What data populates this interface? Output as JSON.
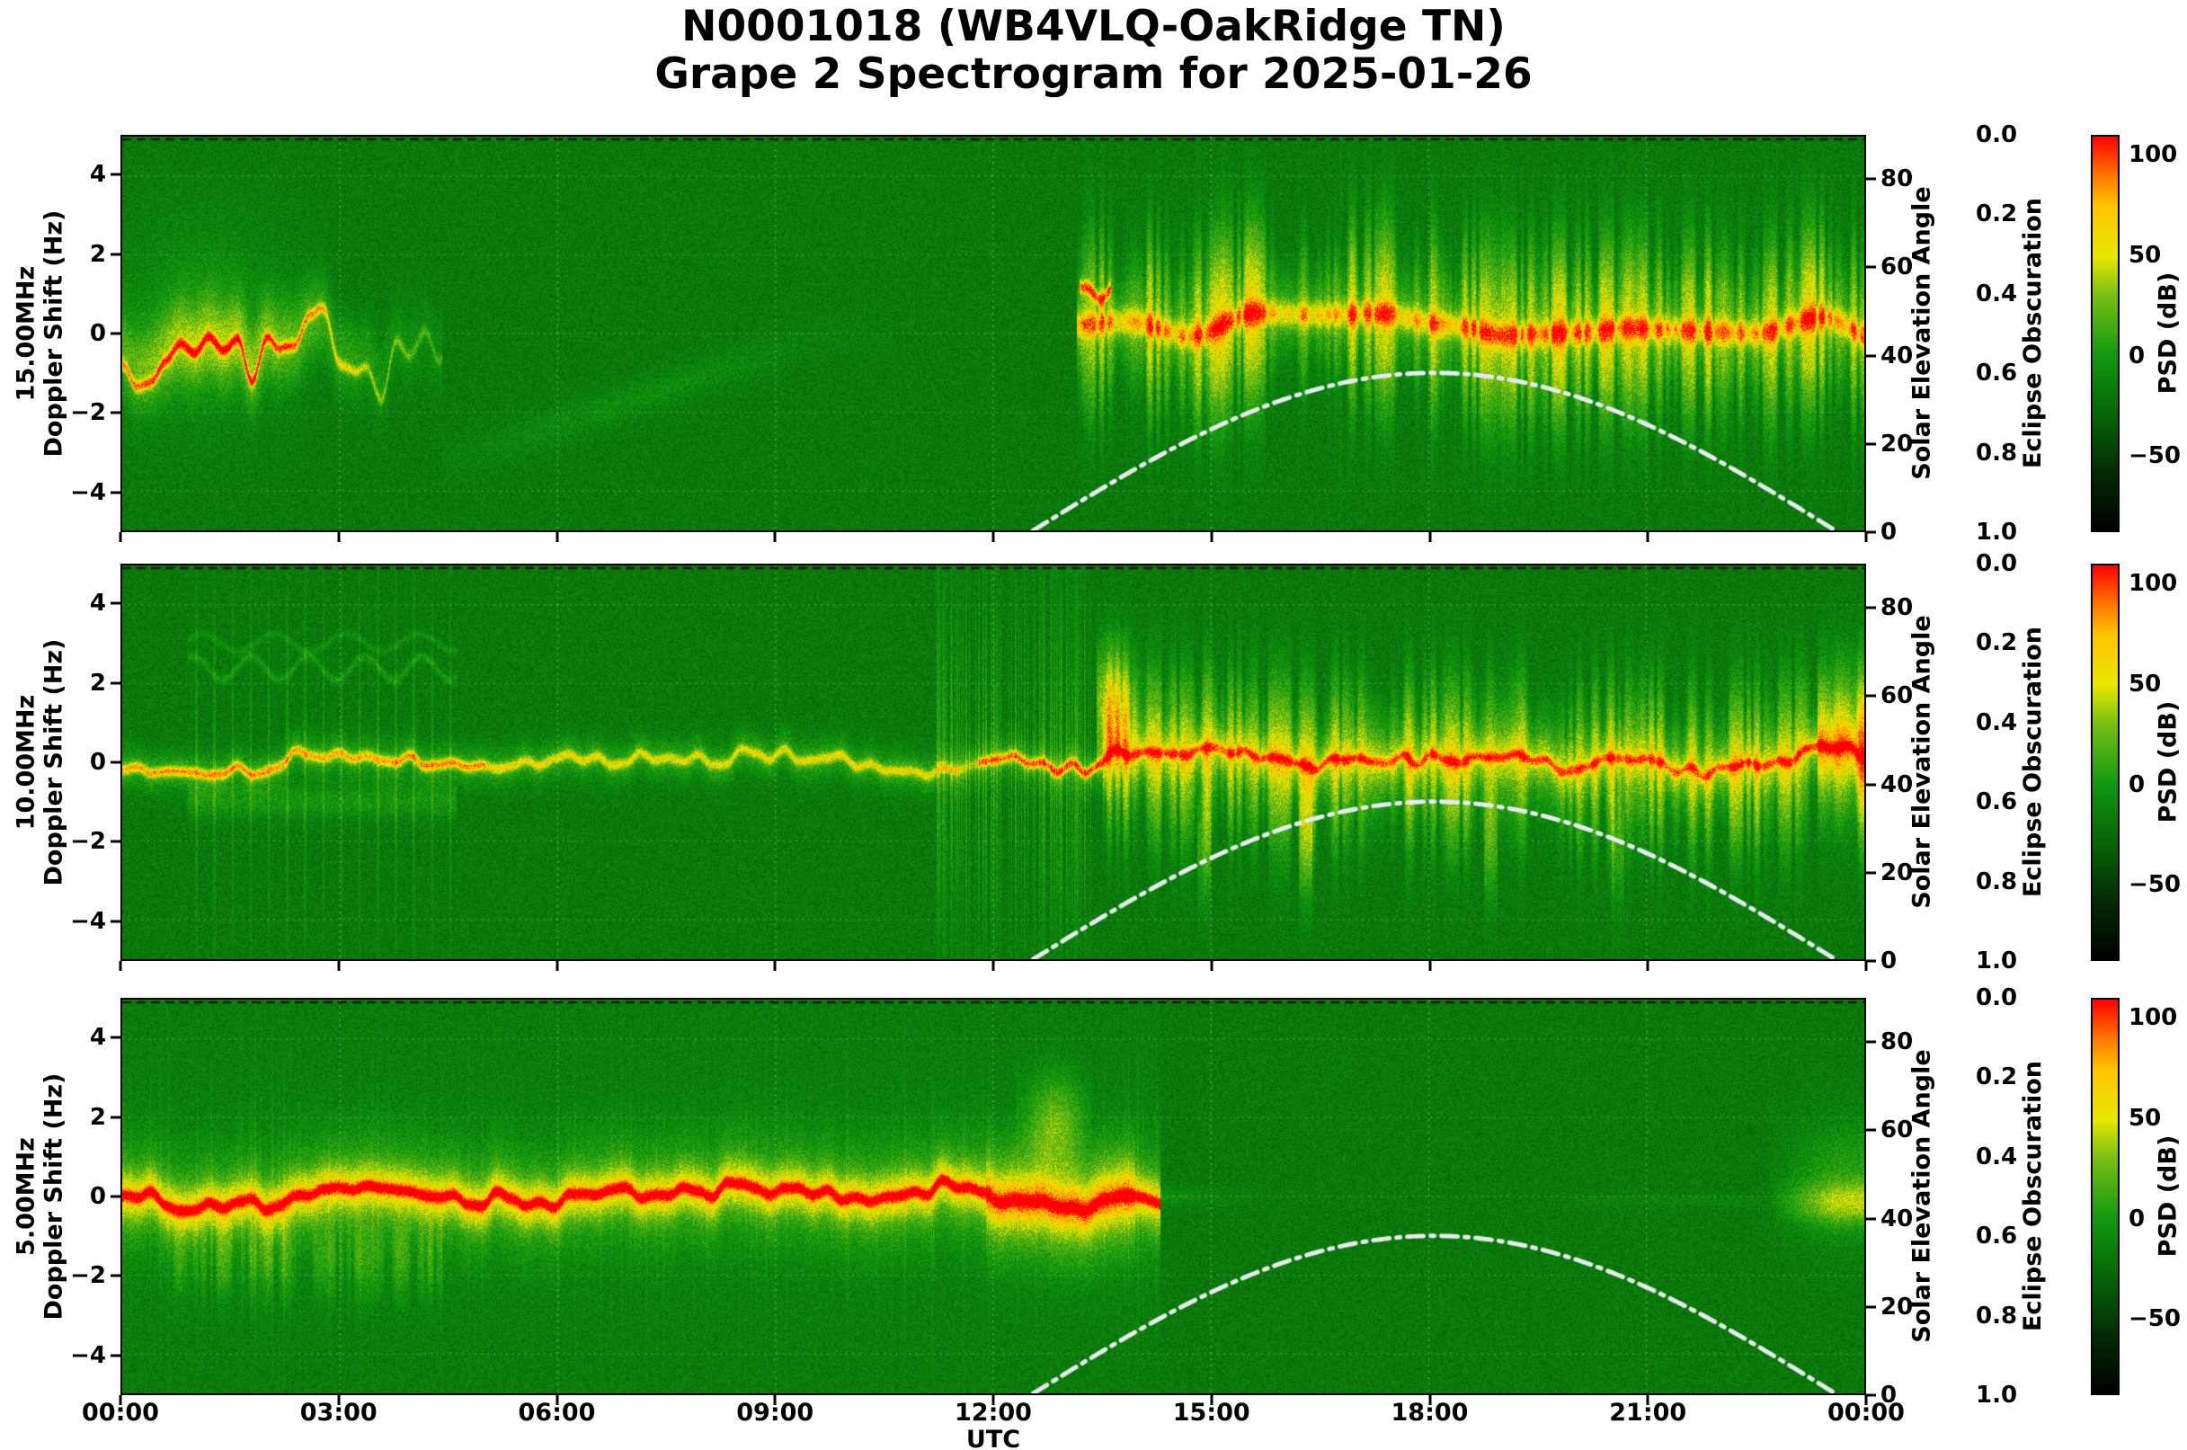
{
  "title": {
    "line1": "N0001018 (WB4VLQ-OakRidge TN)",
    "line2": "Grape 2 Spectrogram for 2025-01-26"
  },
  "x_axis": {
    "label": "UTC",
    "ticks": [
      "00:00",
      "03:00",
      "06:00",
      "09:00",
      "12:00",
      "15:00",
      "18:00",
      "21:00",
      "00:00"
    ],
    "range_hours": [
      0,
      24
    ]
  },
  "right_axes": {
    "solar": {
      "label": "Solar Elevation Angle",
      "ticks": [
        "80",
        "60",
        "40",
        "20",
        "0"
      ],
      "tick_values": [
        80,
        60,
        40,
        20,
        0
      ],
      "range": [
        0,
        90
      ]
    },
    "eclipse": {
      "label": "Eclipse Obscuration",
      "ticks": [
        "0.0",
        "0.2",
        "0.4",
        "0.6",
        "0.8",
        "1.0"
      ],
      "tick_values": [
        0,
        0.2,
        0.4,
        0.6,
        0.8,
        1.0
      ],
      "range": [
        0,
        1
      ],
      "inverted": true
    },
    "colorbar": {
      "label": "PSD (dB)",
      "ticks": [
        "100",
        "50",
        "0",
        "−50"
      ],
      "tick_values": [
        100,
        50,
        0,
        -50
      ],
      "range": [
        -88,
        110
      ]
    }
  },
  "colors": {
    "background": "#ffffff",
    "text": "#000000",
    "spectrogram_green": "#109810",
    "trace_red": "#ff0000",
    "trace_yellow": "#e8e800",
    "solar_curve": "#e4ebeb",
    "eclipse_curve": "#111111",
    "colorbar_top": "#ff0000",
    "colorbar_bottom": "#000000"
  },
  "solar_curve": {
    "label": "Solar Elevation Angle",
    "rise_utc": 12.55,
    "set_utc": 23.6,
    "peak_utc": 18.1,
    "peak_elevation_deg": 36,
    "line_style": "dash-dot",
    "color": "#e4ebeb"
  },
  "eclipse_curve": {
    "value": 0.0,
    "line_style": "dashed",
    "color": "#111111",
    "note": "flat at 0.0 along top of each panel"
  },
  "chart_data": [
    {
      "type": "heatmap",
      "band_label": "15.00MHz",
      "ylabel": "Doppler Shift  (Hz)",
      "ylim": [
        -5,
        5
      ],
      "y_ticks": [
        "4",
        "2",
        "0",
        "−2",
        "−4"
      ],
      "y_tick_values": [
        4,
        2,
        0,
        -2,
        -4
      ],
      "x_range_utc_hours": [
        0,
        24
      ],
      "background_psd_db": -18,
      "activity_segments": [
        {
          "start_utc": 0.0,
          "end_utc": 4.4,
          "center_hz": -1.0,
          "spread_hz": 1.0,
          "peak_psd_db": 90,
          "note": "wandering nighttime trace with red-orange core between 0 and −2 Hz"
        },
        {
          "start_utc": 4.4,
          "end_utc": 10.6,
          "center_hz": -2.0,
          "spread_hz": 0.5,
          "peak_psd_db": 12,
          "note": "faint arc rising from −3 Hz toward 0 Hz; otherwise quiet green background"
        },
        {
          "start_utc": 13.2,
          "end_utc": 24.0,
          "center_hz": 0.3,
          "spread_hz": 1.8,
          "peak_psd_db": 70,
          "note": "broad spiky yellow daytime activity band, red onset squiggle near 13:15"
        }
      ]
    },
    {
      "type": "heatmap",
      "band_label": "10.00MHz",
      "ylabel": "Doppler Shift (Hz)",
      "ylim": [
        -5,
        5
      ],
      "y_ticks": [
        "4",
        "2",
        "0",
        "−2",
        "−4"
      ],
      "y_tick_values": [
        4,
        2,
        0,
        -2,
        -4
      ],
      "x_range_utc_hours": [
        0,
        24
      ],
      "background_psd_db": -18,
      "activity_segments": [
        {
          "start_utc": 0.0,
          "end_utc": 5.0,
          "center_hz": 0.0,
          "spread_hz": 0.5,
          "peak_psd_db": 85,
          "note": "continuous orange-red carrier trace near 0 Hz"
        },
        {
          "start_utc": 1.0,
          "end_utc": 4.6,
          "center_hz": 0.0,
          "spread_hz": 4.0,
          "peak_psd_db": 20,
          "note": "periodic vertical interference columns with faint wavy lines near +2.5 and +3 Hz"
        },
        {
          "start_utc": 5.0,
          "end_utc": 11.5,
          "center_hz": 0.0,
          "spread_hz": 0.4,
          "peak_psd_db": 60,
          "note": "yellow carrier trace"
        },
        {
          "start_utc": 11.8,
          "end_utc": 13.5,
          "center_hz": 0.0,
          "spread_hz": 0.5,
          "peak_psd_db": 90,
          "note": "bright red trace with vertical streaks"
        },
        {
          "start_utc": 13.5,
          "end_utc": 24.0,
          "center_hz": 0.0,
          "spread_hz": 1.5,
          "peak_psd_db": 75,
          "note": "yellow-orange trace with spiky fuzz; upward plume near 13:40; bright patch at right edge"
        }
      ]
    },
    {
      "type": "heatmap",
      "band_label": "5.00MHz",
      "ylabel": "Doppler Shift (Hz)",
      "ylim": [
        -5,
        5
      ],
      "y_ticks": [
        "4",
        "2",
        "0",
        "−2",
        "−4"
      ],
      "y_tick_values": [
        4,
        2,
        0,
        -2,
        -4
      ],
      "x_range_utc_hours": [
        0,
        24
      ],
      "background_psd_db": -18,
      "activity_segments": [
        {
          "start_utc": 0.0,
          "end_utc": 14.3,
          "center_hz": 0.0,
          "spread_hz": 1.2,
          "peak_psd_db": 95,
          "note": "strong continuous red-orange trace at 0 Hz with yellow fuzz; broadens 12:00–14:00"
        },
        {
          "start_utc": 12.3,
          "end_utc": 13.35,
          "center_hz": 1.9,
          "spread_hz": 1.1,
          "peak_psd_db": 55,
          "note": "upward plume"
        },
        {
          "start_utc": 14.3,
          "end_utc": 22.6,
          "center_hz": 0.0,
          "spread_hz": 0.3,
          "peak_psd_db": 5,
          "note": "signal fades after local sunrise; quiet green background"
        },
        {
          "start_utc": 22.6,
          "end_utc": 24.0,
          "center_hz": 0.0,
          "spread_hz": 1.2,
          "peak_psd_db": 60,
          "note": "nighttime trace returns near right edge"
        }
      ]
    }
  ]
}
